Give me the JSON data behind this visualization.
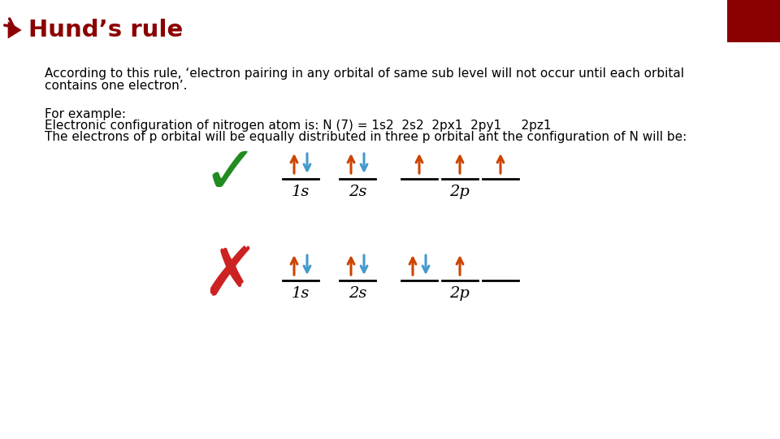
{
  "title": "Hund’s rule",
  "title_color": "#8B0000",
  "bg_color": "#FFFFFF",
  "red_rect_color": "#8B0000",
  "para1_line1": "According to this rule, ‘electron pairing in any orbital of same sub level will not occur until each orbital",
  "para1_line2": "contains one electron’.",
  "para2_line1": "For example:",
  "para2_line2": "Electronic configuration of nitrogen atom is: N (7) = 1s2  2s2  2px1  2py1     2pz1",
  "para2_line3": "The electrons of p orbital will be equally distributed in three p orbital ant the configuration of N will be:",
  "arrow_up_color": "#CC4400",
  "arrow_down_color": "#4499CC",
  "check_color": "#228B22",
  "cross_color": "#CC2222",
  "label_color": "#000000"
}
